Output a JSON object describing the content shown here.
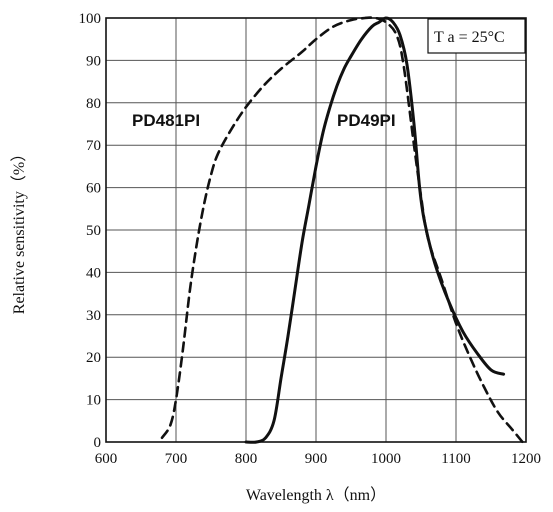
{
  "chart_data": {
    "type": "line",
    "xlabel": "Wavelength λ（nm）",
    "ylabel": "Relative sensitivity（%）",
    "xlim": [
      600,
      1200
    ],
    "ylim": [
      0,
      100
    ],
    "x_ticks": [
      600,
      700,
      800,
      900,
      1000,
      1100,
      1200
    ],
    "y_ticks": [
      0,
      10,
      20,
      30,
      40,
      50,
      60,
      70,
      80,
      90,
      100
    ],
    "grid": true,
    "annotation": "T a = 25°C",
    "series": [
      {
        "name": "PD481PI",
        "style": "dashed",
        "color": "#111111",
        "points": [
          [
            680,
            1
          ],
          [
            692,
            4
          ],
          [
            700,
            10
          ],
          [
            710,
            22
          ],
          [
            720,
            36
          ],
          [
            730,
            47
          ],
          [
            740,
            56
          ],
          [
            750,
            63
          ],
          [
            760,
            68
          ],
          [
            780,
            74
          ],
          [
            800,
            79
          ],
          [
            825,
            84
          ],
          [
            850,
            88
          ],
          [
            880,
            92
          ],
          [
            900,
            95
          ],
          [
            925,
            98
          ],
          [
            950,
            99.5
          ],
          [
            970,
            100
          ],
          [
            985,
            100
          ],
          [
            1000,
            99
          ],
          [
            1015,
            96
          ],
          [
            1025,
            89
          ],
          [
            1040,
            70
          ],
          [
            1050,
            58
          ],
          [
            1060,
            48
          ],
          [
            1080,
            38
          ],
          [
            1100,
            28
          ],
          [
            1120,
            20
          ],
          [
            1140,
            13
          ],
          [
            1160,
            7
          ],
          [
            1180,
            3
          ],
          [
            1195,
            0
          ]
        ]
      },
      {
        "name": "PD49PI",
        "style": "solid",
        "color": "#111111",
        "points": [
          [
            800,
            0
          ],
          [
            815,
            0
          ],
          [
            828,
            1
          ],
          [
            840,
            5
          ],
          [
            850,
            15
          ],
          [
            860,
            25
          ],
          [
            870,
            36
          ],
          [
            880,
            47
          ],
          [
            890,
            56
          ],
          [
            900,
            65
          ],
          [
            910,
            73
          ],
          [
            920,
            79
          ],
          [
            930,
            84
          ],
          [
            940,
            88
          ],
          [
            950,
            91
          ],
          [
            965,
            95
          ],
          [
            980,
            98
          ],
          [
            990,
            99
          ],
          [
            1000,
            100
          ],
          [
            1010,
            99
          ],
          [
            1020,
            96
          ],
          [
            1030,
            89
          ],
          [
            1040,
            75
          ],
          [
            1048,
            60
          ],
          [
            1055,
            52
          ],
          [
            1070,
            42
          ],
          [
            1090,
            33
          ],
          [
            1110,
            26
          ],
          [
            1130,
            21
          ],
          [
            1150,
            17
          ],
          [
            1168,
            16
          ]
        ]
      }
    ]
  }
}
